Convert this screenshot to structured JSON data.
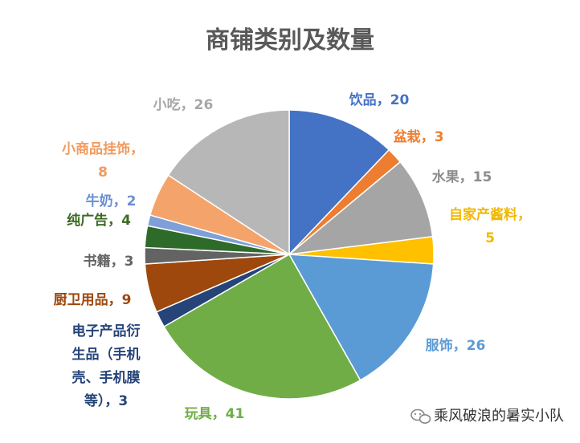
{
  "chart_data": {
    "type": "pie",
    "title": "商铺类别及数量",
    "slices": [
      {
        "label": "饮品",
        "value": 20,
        "color": "#4472C4",
        "label_color": "#4472C4",
        "label_lines": [
          "饮品，20"
        ]
      },
      {
        "label": "盆栽",
        "value": 3,
        "color": "#ED7D31",
        "label_color": "#ED7D31",
        "label_lines": [
          "盆栽，3"
        ]
      },
      {
        "label": "水果",
        "value": 15,
        "color": "#A5A5A5",
        "label_color": "#8C8C8C",
        "label_lines": [
          "水果，15"
        ]
      },
      {
        "label": "自家产酱料",
        "value": 5,
        "color": "#FFC000",
        "label_color": "#F2B800",
        "label_lines": [
          "自家产酱料，",
          "5"
        ]
      },
      {
        "label": "服饰",
        "value": 26,
        "color": "#5B9BD5",
        "label_color": "#5B9BD5",
        "label_lines": [
          "服饰，26"
        ]
      },
      {
        "label": "玩具",
        "value": 41,
        "color": "#70AD47",
        "label_color": "#70AD47",
        "label_lines": [
          "玩具，41"
        ]
      },
      {
        "label": "电子产品衍生品（手机壳、手机膜等）",
        "value": 3,
        "color": "#264478",
        "label_color": "#264478",
        "label_lines": [
          "电子产品衍",
          "生品（手机",
          "壳、手机膜",
          "等），3"
        ]
      },
      {
        "label": "厨卫用品",
        "value": 9,
        "color": "#9E480E",
        "label_color": "#9E480E",
        "label_lines": [
          "厨卫用品，9"
        ]
      },
      {
        "label": "书籍",
        "value": 3,
        "color": "#636363",
        "label_color": "#636363",
        "label_lines": [
          "书籍，3"
        ]
      },
      {
        "label": "纯广告",
        "value": 4,
        "color": "#2E6B2B",
        "label_color": "#3A6B22",
        "label_lines": [
          "纯广告，4"
        ]
      },
      {
        "label": "牛奶",
        "value": 2,
        "color": "#7E9FD8",
        "label_color": "#6A8FD0",
        "label_lines": [
          "牛奶，2"
        ]
      },
      {
        "label": "小商品挂饰",
        "value": 8,
        "color": "#F4A46A",
        "label_color": "#F29A5E",
        "label_lines": [
          "小商品挂饰，",
          "8"
        ]
      },
      {
        "label": "小吃",
        "value": 26,
        "color": "#B7B7B7",
        "label_color": "#A6A6A6",
        "label_lines": [
          "小吃，26"
        ]
      }
    ]
  },
  "watermark": {
    "icon": "wechat-icon",
    "text": "乘风破浪的暑实小队"
  }
}
